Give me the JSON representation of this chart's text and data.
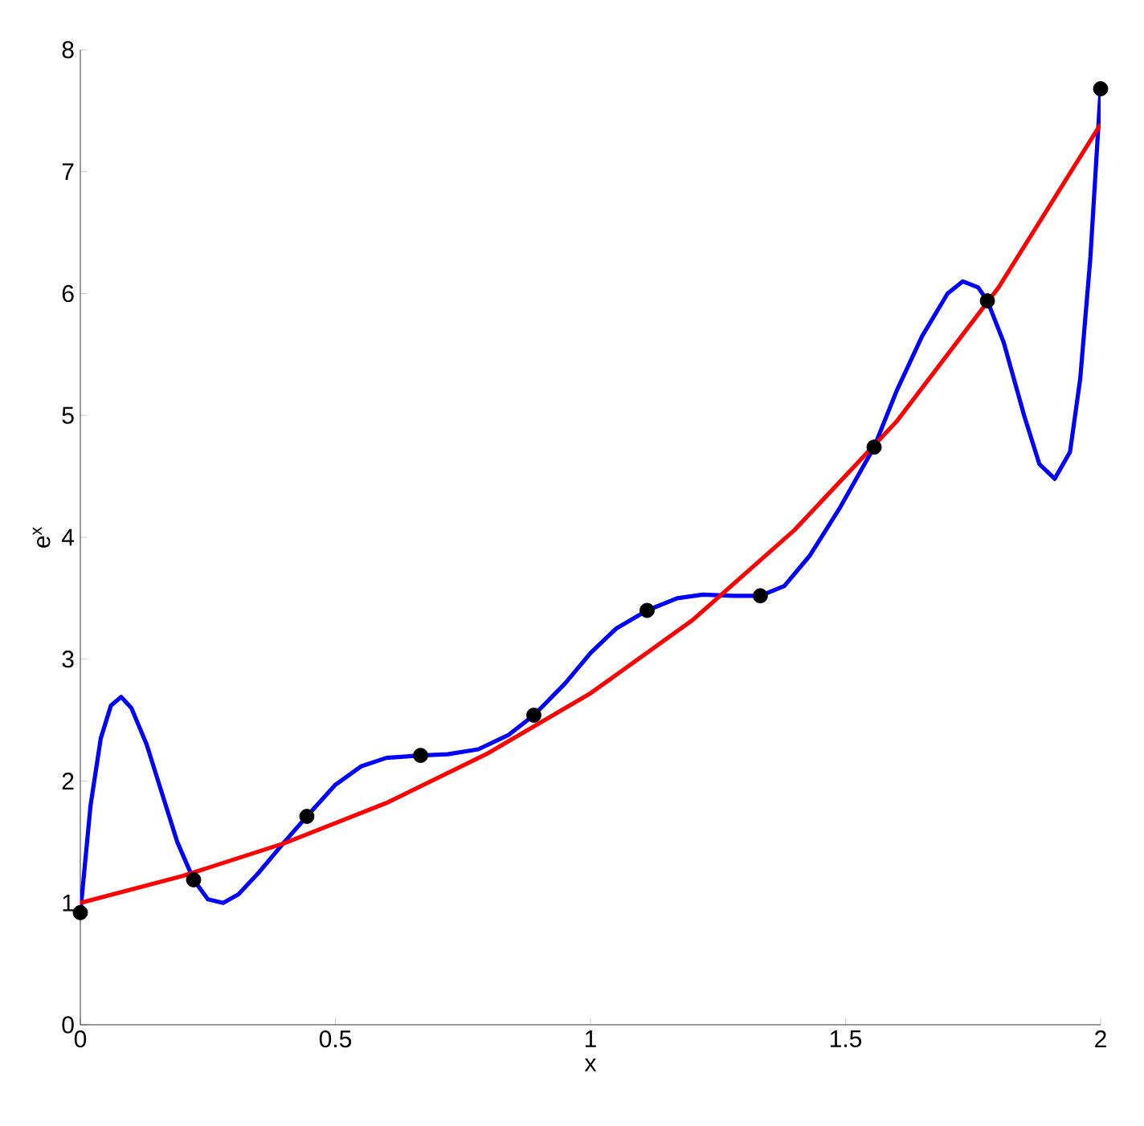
{
  "chart_data": {
    "type": "line",
    "xlabel": "x",
    "ylabel": "e$^{x}$",
    "xlim": [
      0,
      2
    ],
    "ylim": [
      0,
      8
    ],
    "xticks": [
      0,
      0.5,
      1,
      1.5,
      2
    ],
    "yticks": [
      0,
      1,
      2,
      3,
      4,
      5,
      6,
      7,
      8
    ],
    "grid": false,
    "series": [
      {
        "color": "#0000ff",
        "marker": "none",
        "x": [
          0,
          0.02,
          0.04,
          0.06,
          0.08,
          0.1,
          0.13,
          0.16,
          0.19,
          0.222,
          0.25,
          0.28,
          0.31,
          0.35,
          0.4,
          0.444,
          0.5,
          0.55,
          0.6,
          0.667,
          0.72,
          0.78,
          0.84,
          0.889,
          0.95,
          1.0,
          1.05,
          1.111,
          1.17,
          1.22,
          1.28,
          1.333,
          1.38,
          1.43,
          1.49,
          1.556,
          1.6,
          1.65,
          1.7,
          1.73,
          1.76,
          1.778,
          1.81,
          1.85,
          1.88,
          1.91,
          1.94,
          1.96,
          1.98,
          2.0
        ],
        "values": [
          0.92,
          1.8,
          2.35,
          2.62,
          2.69,
          2.6,
          2.3,
          1.9,
          1.5,
          1.19,
          1.03,
          1.0,
          1.07,
          1.25,
          1.5,
          1.71,
          1.97,
          2.12,
          2.19,
          2.21,
          2.22,
          2.26,
          2.38,
          2.54,
          2.8,
          3.05,
          3.25,
          3.4,
          3.5,
          3.53,
          3.52,
          3.52,
          3.6,
          3.85,
          4.25,
          4.74,
          5.2,
          5.65,
          6.0,
          6.1,
          6.05,
          5.94,
          5.6,
          5.0,
          4.6,
          4.48,
          4.7,
          5.3,
          6.3,
          7.68
        ]
      },
      {
        "color": "#ff0000",
        "marker": "none",
        "x": [
          0,
          0.2,
          0.4,
          0.6,
          0.8,
          1.0,
          1.2,
          1.4,
          1.6,
          1.8,
          2.0
        ],
        "values": [
          1.0,
          1.22,
          1.49,
          1.82,
          2.23,
          2.72,
          3.32,
          4.06,
          4.95,
          6.05,
          7.39
        ]
      },
      {
        "type": "scatter",
        "color": "#000000",
        "marker": "circle",
        "x": [
          0,
          0.222,
          0.444,
          0.667,
          0.889,
          1.111,
          1.333,
          1.556,
          1.778,
          2.0
        ],
        "values": [
          0.92,
          1.19,
          1.71,
          2.21,
          2.54,
          3.4,
          3.52,
          4.74,
          5.94,
          7.68
        ]
      }
    ]
  }
}
